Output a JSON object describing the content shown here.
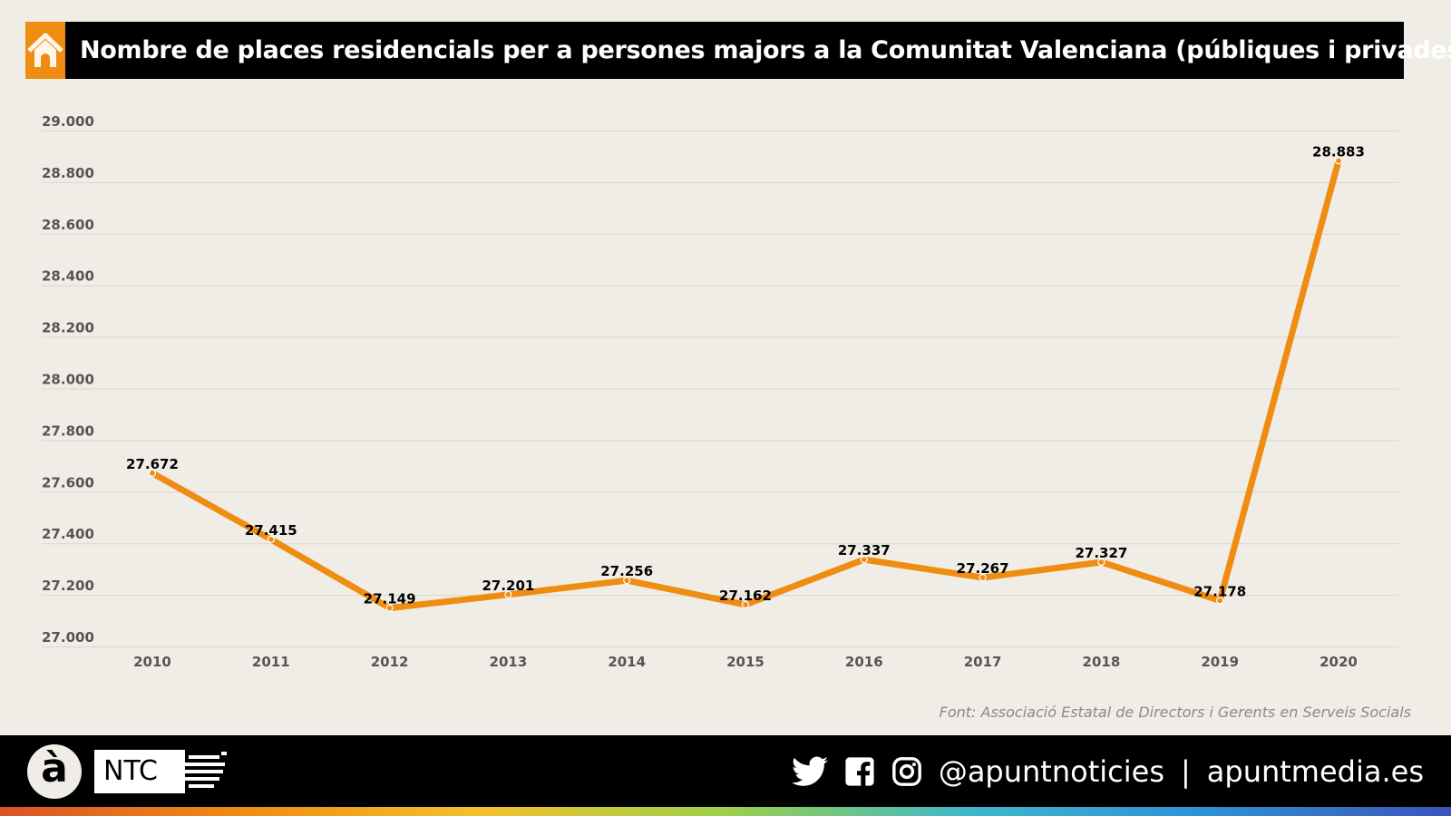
{
  "title": "Nombre de places residencials per a persones majors a la Comunitat Valenciana (públiques i privades)",
  "icons": {
    "header": "home-icon",
    "social": [
      "twitter-icon",
      "facebook-icon",
      "instagram-icon"
    ]
  },
  "colors": {
    "accent": "#ef8c12",
    "line": "#ef8c12",
    "background": "#f0ede6",
    "grid": "#d9d6cf"
  },
  "source": "Font:  Associació Estatal de Directors i Gerents en Serveis Socials",
  "footer": {
    "logo_letter": "à",
    "brand": "NTC",
    "handle": "@apuntnoticies",
    "separator": "|",
    "site": "apuntmedia.es"
  },
  "chart_data": {
    "type": "line",
    "title": "Nombre de places residencials per a persones majors a la Comunitat Valenciana (públiques i privades)",
    "categories": [
      "2010",
      "2011",
      "2012",
      "2013",
      "2014",
      "2015",
      "2016",
      "2017",
      "2018",
      "2019",
      "2020"
    ],
    "values": [
      27672,
      27415,
      27149,
      27201,
      27256,
      27162,
      27337,
      27267,
      27327,
      27178,
      28883
    ],
    "data_labels": [
      "27.672",
      "27.415",
      "27.149",
      "27.201",
      "27.256",
      "27.162",
      "27.337",
      "27.267",
      "27.327",
      "27.178",
      "28.883"
    ],
    "ylim": [
      27000,
      29000
    ],
    "yticks": [
      27000,
      27200,
      27400,
      27600,
      27800,
      28000,
      28200,
      28400,
      28600,
      28800,
      29000
    ],
    "ytick_labels": [
      "27.000",
      "27.200",
      "27.400",
      "27.600",
      "27.800",
      "28.000",
      "28.200",
      "28.400",
      "28.600",
      "28.800",
      "29.000"
    ],
    "grid": true,
    "xlabel": "",
    "ylabel": ""
  }
}
